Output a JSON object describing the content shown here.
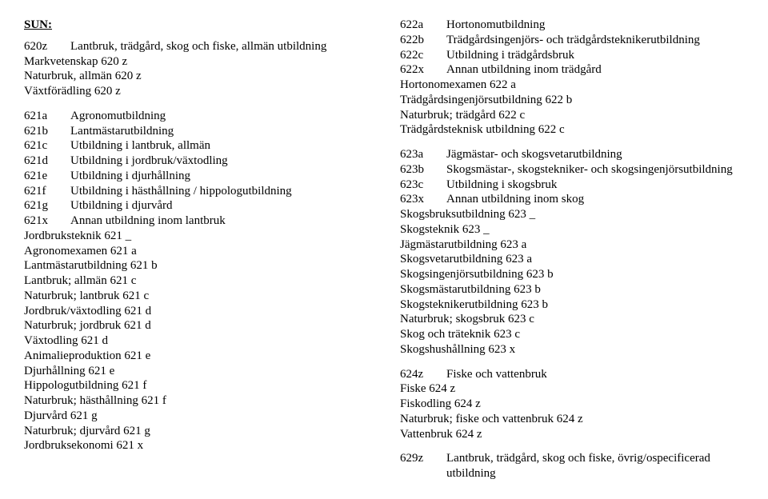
{
  "left": {
    "title": "SUN:",
    "r1": {
      "code": "620z",
      "label": "Lantbruk, trädgård, skog och fiske, allmän utbildning"
    },
    "p1": "Markvetenskap 620 z",
    "p2": "Naturbruk, allmän 620 z",
    "p3": "Växtförädling 620 z",
    "r2": {
      "code": "621a",
      "label": "Agronomutbildning"
    },
    "r3": {
      "code": "621b",
      "label": "Lantmästarutbildning"
    },
    "r4": {
      "code": "621c",
      "label": "Utbildning i lantbruk, allmän"
    },
    "r5": {
      "code": "621d",
      "label": "Utbildning i jordbruk/växtodling"
    },
    "r6": {
      "code": "621e",
      "label": "Utbildning i djurhållning"
    },
    "r7": {
      "code": "621f",
      "label": "Utbildning i hästhållning / hippologutbildning"
    },
    "r8": {
      "code": "621g",
      "label": "Utbildning i djurvård"
    },
    "r9": {
      "code": "621x",
      "label": "Annan utbildning inom lantbruk"
    },
    "p4": "Jordbruksteknik 621 _",
    "p5": "Agronomexamen 621 a",
    "p6": "Lantmästarutbildning 621 b",
    "p7": "Lantbruk; allmän 621 c",
    "p8": "Naturbruk; lantbruk 621 c",
    "p9": "Jordbruk/växtodling 621 d",
    "p10": "Naturbruk; jordbruk 621 d",
    "p11": "Växtodling 621 d",
    "p12": "Animalieproduktion 621 e",
    "p13": "Djurhållning 621 e",
    "p14": "Hippologutbildning 621 f",
    "p15": "Naturbruk; hästhållning 621 f",
    "p16": "Djurvård 621 g",
    "p17": "Naturbruk; djurvård 621 g",
    "p18": "Jordbruksekonomi 621 x"
  },
  "right": {
    "r1": {
      "code": "622a",
      "label": "Hortonomutbildning"
    },
    "r2": {
      "code": "622b",
      "label": "Trädgårdsingenjörs- och trädgårdsteknikerutbildning"
    },
    "r3": {
      "code": "622c",
      "label": "Utbildning i trädgårdsbruk"
    },
    "r4": {
      "code": "622x",
      "label": "Annan utbildning inom trädgård"
    },
    "p1": "Hortonomexamen 622 a",
    "p2": "Trädgårdsingenjörsutbildning 622 b",
    "p3": "Naturbruk; trädgård 622 c",
    "p4": "Trädgårdsteknisk utbildning 622 c",
    "r5": {
      "code": "623a",
      "label": "Jägmästar- och skogsvetarutbildning"
    },
    "r6": {
      "code": "623b",
      "label": "Skogsmästar-, skogstekniker- och skogsingenjörsutbildning"
    },
    "r7": {
      "code": "623c",
      "label": "Utbildning i skogsbruk"
    },
    "r8": {
      "code": "623x",
      "label": "Annan utbildning inom skog"
    },
    "p5": "Skogsbruksutbildning 623 _",
    "p6": "Skogsteknik 623 _",
    "p7": "Jägmästarutbildning 623 a",
    "p8": "Skogsvetarutbildning 623 a",
    "p9": "Skogsingenjörsutbildning 623 b",
    "p10": "Skogsmästarutbildning 623 b",
    "p11": "Skogsteknikerutbildning 623 b",
    "p12": "Naturbruk; skogsbruk 623 c",
    "p13": "Skog och träteknik 623 c",
    "p14": "Skogshushållning 623 x",
    "r9": {
      "code": "624z",
      "label": "Fiske och vattenbruk"
    },
    "p15": "Fiske 624 z",
    "p16": "Fiskodling 624 z",
    "p17": "Naturbruk; fiske och vattenbruk 624 z",
    "p18": "Vattenbruk 624 z",
    "r10": {
      "code": "629z",
      "label": "Lantbruk, trädgård, skog och fiske, övrig/ospecificerad utbildning"
    }
  }
}
